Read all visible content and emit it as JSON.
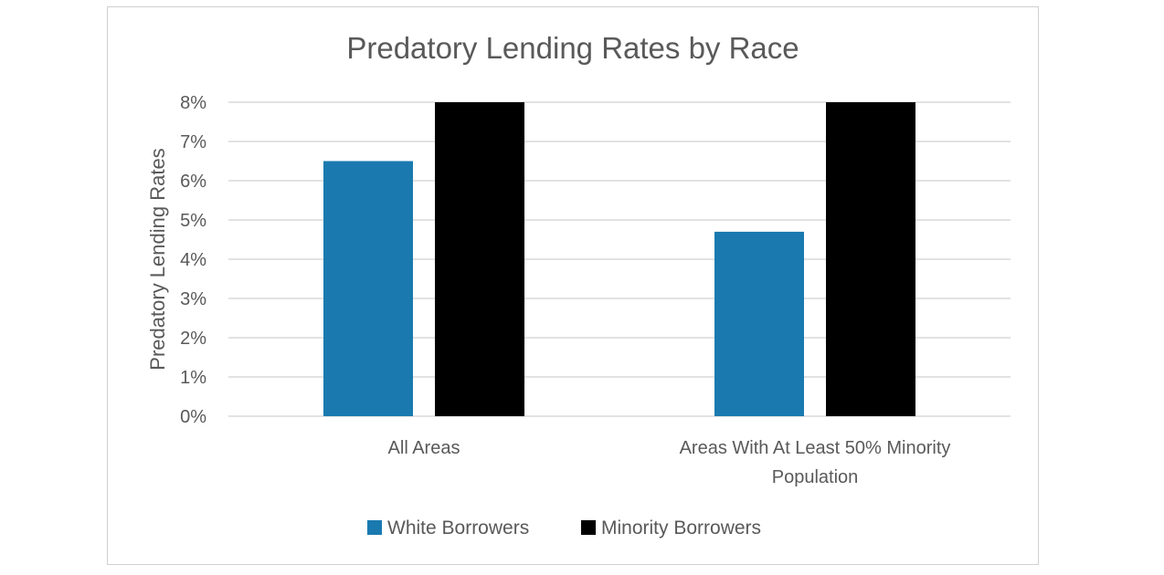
{
  "chart_data": {
    "type": "bar",
    "title": "Predatory Lending Rates by Race",
    "xlabel": "",
    "ylabel": "Predatory Lending Rates",
    "categories": [
      [
        "All Areas"
      ],
      [
        "Areas With At Least 50% Minority",
        "Population"
      ]
    ],
    "series": [
      {
        "name": "White Borrowers",
        "color": "#1a7aaf",
        "values": [
          6.5,
          4.7
        ]
      },
      {
        "name": "Minority Borrowers",
        "color": "#000000",
        "values": [
          8.0,
          8.0
        ]
      }
    ],
    "ylim": [
      0,
      8
    ],
    "yticks": [
      0,
      1,
      2,
      3,
      4,
      5,
      6,
      7,
      8
    ],
    "ytick_labels": [
      "0%",
      "1%",
      "2%",
      "3%",
      "4%",
      "5%",
      "6%",
      "7%",
      "8%"
    ],
    "grid": true,
    "legend_position": "bottom"
  }
}
